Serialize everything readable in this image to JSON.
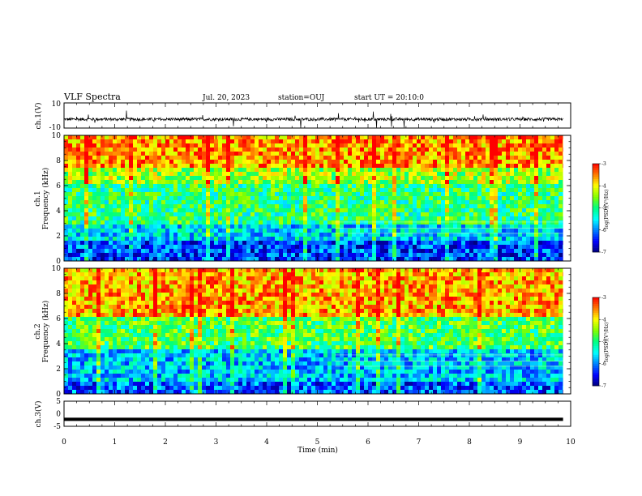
{
  "header": {
    "title": "VLF Spectra",
    "date": "Jul. 20, 2023",
    "station": "station=OUJ",
    "start": "start UT = 20:10:0"
  },
  "chart_data": [
    {
      "type": "line",
      "panel": "ch1-waveform",
      "ylabel": "ch.1(V)",
      "ylim": [
        -10,
        10
      ],
      "yticks": [
        "10",
        "-10"
      ],
      "x": [
        0,
        10
      ],
      "description_values": {
        "baseline": -3,
        "typical_amplitude": 1.2,
        "max_spike": 7
      }
    },
    {
      "type": "heatmap",
      "panel": "ch1-spectrogram",
      "ylabel_line1": "ch.1",
      "ylabel_line2": "Frequency (kHz)",
      "ylim": [
        0,
        10
      ],
      "yticks": [
        "0",
        "2",
        "4",
        "6",
        "8",
        "10"
      ],
      "xlim": [
        0,
        9.85
      ],
      "colorbar": {
        "label": "log(PSD)(V²/Hz)",
        "range": [
          -7,
          -3
        ],
        "ticks": [
          "-3",
          "-4",
          "-5",
          "-6",
          "-7"
        ]
      },
      "bands": [
        {
          "f_low": 0,
          "f_high": 1.5,
          "log_psd": -6.3
        },
        {
          "f_low": 1.5,
          "f_high": 3,
          "log_psd": -5.6
        },
        {
          "f_low": 3,
          "f_high": 6,
          "log_psd": -5.0
        },
        {
          "f_low": 6,
          "f_high": 7.5,
          "log_psd": -4.4
        },
        {
          "f_low": 7.5,
          "f_high": 10,
          "log_psd": -3.6
        }
      ],
      "change_time_min": 5.35
    },
    {
      "type": "heatmap",
      "panel": "ch2-spectrogram",
      "ylabel_line1": "ch.2",
      "ylabel_line2": "Frequency (kHz)",
      "ylim": [
        0,
        10
      ],
      "yticks": [
        "0",
        "2",
        "4",
        "6",
        "8",
        "10"
      ],
      "xlim": [
        0,
        9.85
      ],
      "colorbar": {
        "label": "log(PSD)(V²/Hz)",
        "range": [
          -7,
          -3
        ],
        "ticks": [
          "-3",
          "-4",
          "-5",
          "-6",
          "-7"
        ]
      },
      "bands": [
        {
          "f_low": 0,
          "f_high": 1,
          "log_psd": -6.2
        },
        {
          "f_low": 1,
          "f_high": 3.5,
          "log_psd": -5.7
        },
        {
          "f_low": 3.5,
          "f_high": 6,
          "log_psd": -4.8
        },
        {
          "f_low": 6,
          "f_high": 10,
          "log_psd": -3.7
        }
      ],
      "change_time_min": 5.35
    },
    {
      "type": "line",
      "panel": "ch3-waveform",
      "ylabel": "ch.3(V)",
      "ylim": [
        -5,
        5
      ],
      "yticks": [
        "5",
        "0",
        "-5"
      ],
      "x": [
        0,
        9.85
      ],
      "y": [
        -2.2,
        -2.2
      ]
    }
  ],
  "xaxis": {
    "label": "Time (min)",
    "ticks": [
      "0",
      "1",
      "2",
      "3",
      "4",
      "5",
      "6",
      "7",
      "8",
      "9",
      "10"
    ],
    "xlim": [
      0,
      10
    ]
  },
  "colors": {
    "jet": [
      "#00007f",
      "#0000ff",
      "#00ffff",
      "#00ff7f",
      "#7fff00",
      "#ffff00",
      "#ff7f00",
      "#ff0000"
    ]
  }
}
